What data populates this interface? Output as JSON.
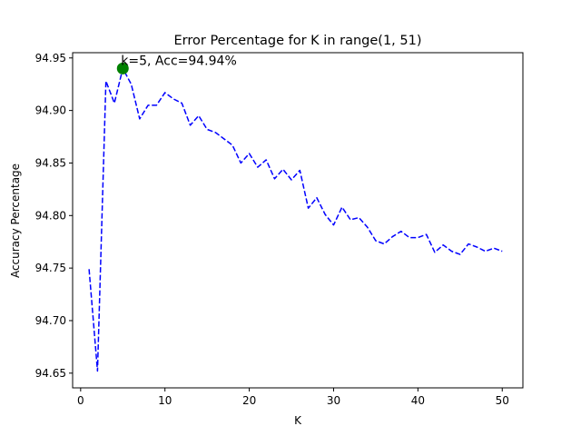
{
  "chart_data": {
    "type": "line",
    "title": "Error Percentage for K in range(1, 51)",
    "xlabel": "K",
    "ylabel": "Accuracy Percentage",
    "xlim": [
      -0.95,
      52.45
    ],
    "ylim": [
      94.636,
      94.955
    ],
    "xticks": [
      0,
      10,
      20,
      30,
      40,
      50
    ],
    "yticks": [
      94.65,
      94.7,
      94.75,
      94.8,
      94.85,
      94.9,
      94.95
    ],
    "ytick_labels": [
      "94.65",
      "94.70",
      "94.75",
      "94.80",
      "94.85",
      "94.90",
      "94.95"
    ],
    "grid": false,
    "line_color": "#0000ff",
    "line_style": "dashed",
    "series": [
      {
        "x": [
          1,
          2,
          3,
          4,
          5,
          6,
          7,
          8,
          9,
          10,
          11,
          12,
          13,
          14,
          15,
          16,
          17,
          18,
          19,
          20,
          21,
          22,
          23,
          24,
          25,
          26,
          27,
          28,
          29,
          30,
          31,
          32,
          33,
          34,
          35,
          36,
          37,
          38,
          39,
          40,
          41,
          42,
          43,
          44,
          45,
          46,
          47,
          48,
          49,
          50
        ],
        "values": [
          94.749,
          94.652,
          94.928,
          94.907,
          94.94,
          94.925,
          94.892,
          94.905,
          94.905,
          94.917,
          94.911,
          94.907,
          94.886,
          94.895,
          94.882,
          94.879,
          94.873,
          94.867,
          94.85,
          94.859,
          94.846,
          94.853,
          94.835,
          94.844,
          94.834,
          94.843,
          94.807,
          94.817,
          94.801,
          94.791,
          94.808,
          94.796,
          94.798,
          94.789,
          94.776,
          94.773,
          94.78,
          94.785,
          94.779,
          94.779,
          94.782,
          94.765,
          94.772,
          94.766,
          94.763,
          94.773,
          94.77,
          94.766,
          94.769,
          94.766
        ]
      }
    ],
    "highlight_point": {
      "x": 5,
      "y": 94.94,
      "color": "#008000"
    },
    "annotation": {
      "text": "k=5, Acc=94.94%",
      "x": 5,
      "y": 94.94
    }
  }
}
